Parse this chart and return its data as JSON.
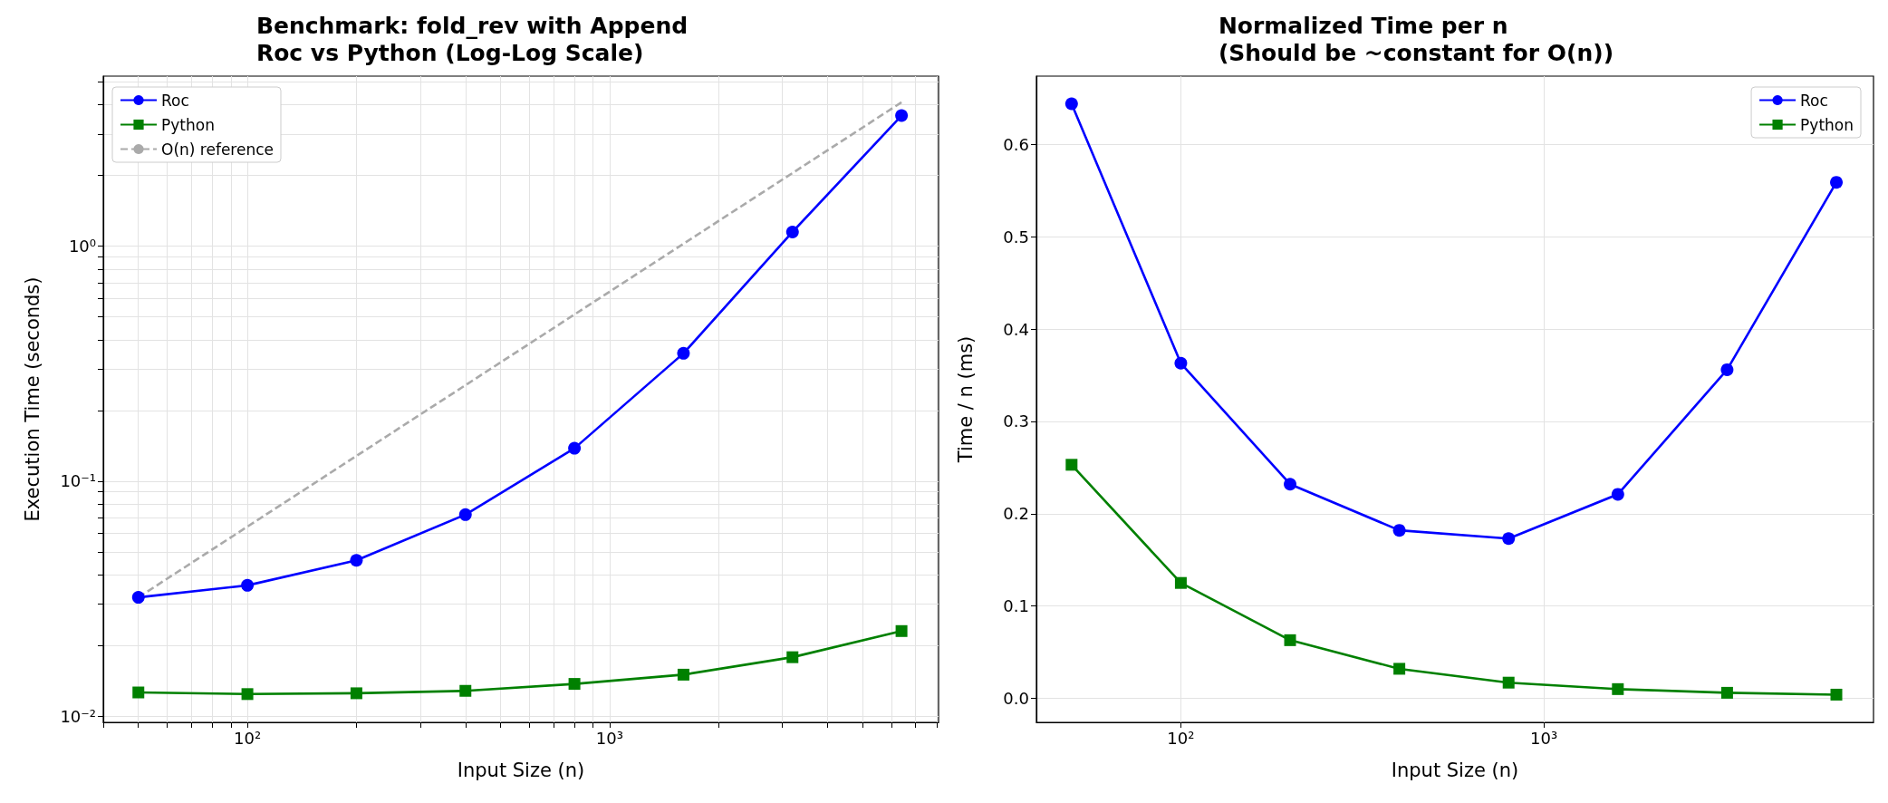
{
  "chart_data": [
    {
      "type": "line",
      "title": "Benchmark: fold_rev with Append\nRoc vs Python (Log-Log Scale)",
      "xlabel": "Input Size (n)",
      "ylabel": "Execution Time (seconds)",
      "log": "xy",
      "grid": true,
      "legend": "top left",
      "x": [
        50,
        100,
        200,
        400,
        800,
        1600,
        3200,
        6400
      ],
      "series": [
        {
          "name": "Roc",
          "color": "#0000ff",
          "marker": "circle",
          "line_style": "solid",
          "values": [
            0.032,
            0.036,
            0.046,
            0.072,
            0.138,
            0.35,
            1.15,
            3.6
          ]
        },
        {
          "name": "Python",
          "color": "#008000",
          "marker": "square",
          "line_style": "solid",
          "values": [
            0.0126,
            0.0124,
            0.0125,
            0.0128,
            0.0137,
            0.015,
            0.0178,
            0.023
          ]
        },
        {
          "name": "O(n) reference",
          "color": "#aaaaaa",
          "marker": "none",
          "line_style": "dashed",
          "x": [
            50,
            6400
          ],
          "values": [
            0.032,
            4.1
          ]
        }
      ],
      "xlim": [
        40,
        8100
      ],
      "ylim": [
        0.0094,
        5.3
      ],
      "xticks": [
        {
          "value": 40,
          "label": null
        },
        {
          "value": 50,
          "label": null
        },
        {
          "value": 60,
          "label": null
        },
        {
          "value": 70,
          "label": null
        },
        {
          "value": 80,
          "label": null
        },
        {
          "value": 90,
          "label": null
        },
        {
          "value": 100,
          "label": "10²"
        },
        {
          "value": 200,
          "label": null
        },
        {
          "value": 300,
          "label": null
        },
        {
          "value": 400,
          "label": null
        },
        {
          "value": 500,
          "label": null
        },
        {
          "value": 600,
          "label": null
        },
        {
          "value": 700,
          "label": null
        },
        {
          "value": 800,
          "label": null
        },
        {
          "value": 900,
          "label": null
        },
        {
          "value": 1000,
          "label": "10³"
        },
        {
          "value": 2000,
          "label": null
        },
        {
          "value": 3000,
          "label": null
        },
        {
          "value": 4000,
          "label": null
        },
        {
          "value": 5000,
          "label": null
        },
        {
          "value": 6000,
          "label": null
        },
        {
          "value": 7000,
          "label": null
        },
        {
          "value": 8000,
          "label": null
        }
      ],
      "yticks": [
        {
          "value": 0.01,
          "label": "10⁻²"
        },
        {
          "value": 0.02,
          "label": null
        },
        {
          "value": 0.03,
          "label": null
        },
        {
          "value": 0.04,
          "label": null
        },
        {
          "value": 0.05,
          "label": null
        },
        {
          "value": 0.06,
          "label": null
        },
        {
          "value": 0.07,
          "label": null
        },
        {
          "value": 0.08,
          "label": null
        },
        {
          "value": 0.09,
          "label": null
        },
        {
          "value": 0.1,
          "label": "10⁻¹"
        },
        {
          "value": 0.2,
          "label": null
        },
        {
          "value": 0.3,
          "label": null
        },
        {
          "value": 0.4,
          "label": null
        },
        {
          "value": 0.5,
          "label": null
        },
        {
          "value": 0.6,
          "label": null
        },
        {
          "value": 0.7,
          "label": null
        },
        {
          "value": 0.8,
          "label": null
        },
        {
          "value": 0.9,
          "label": null
        },
        {
          "value": 1,
          "label": "10⁰"
        },
        {
          "value": 2,
          "label": null
        },
        {
          "value": 3,
          "label": null
        },
        {
          "value": 4,
          "label": null
        },
        {
          "value": 5,
          "label": null
        }
      ]
    },
    {
      "type": "line",
      "title": "Normalized Time per n\n(Should be ~constant for O(n))",
      "xlabel": "Input Size (n)",
      "ylabel": "Time / n (ms)",
      "log": "x",
      "grid": true,
      "legend": "top right",
      "x": [
        50,
        100,
        200,
        400,
        800,
        1600,
        3200,
        6400
      ],
      "series": [
        {
          "name": "Roc",
          "color": "#0000ff",
          "marker": "circle",
          "line_style": "solid",
          "values": [
            0.644,
            0.363,
            0.232,
            0.182,
            0.173,
            0.221,
            0.356,
            0.559
          ]
        },
        {
          "name": "Python",
          "color": "#008000",
          "marker": "square",
          "line_style": "solid",
          "values": [
            0.253,
            0.125,
            0.063,
            0.032,
            0.017,
            0.01,
            0.006,
            0.004
          ]
        }
      ],
      "xlim": [
        40,
        8100
      ],
      "ylim": [
        -0.026,
        0.674
      ],
      "xticks": [
        {
          "value": 100,
          "label": "10²"
        },
        {
          "value": 1000,
          "label": "10³"
        }
      ],
      "yticks": [
        {
          "value": 0,
          "label": "0.0"
        },
        {
          "value": 0.1,
          "label": "0.1"
        },
        {
          "value": 0.2,
          "label": "0.2"
        },
        {
          "value": 0.3,
          "label": "0.3"
        },
        {
          "value": 0.4,
          "label": "0.4"
        },
        {
          "value": 0.5,
          "label": "0.5"
        },
        {
          "value": 0.6,
          "label": "0.6"
        }
      ]
    }
  ]
}
